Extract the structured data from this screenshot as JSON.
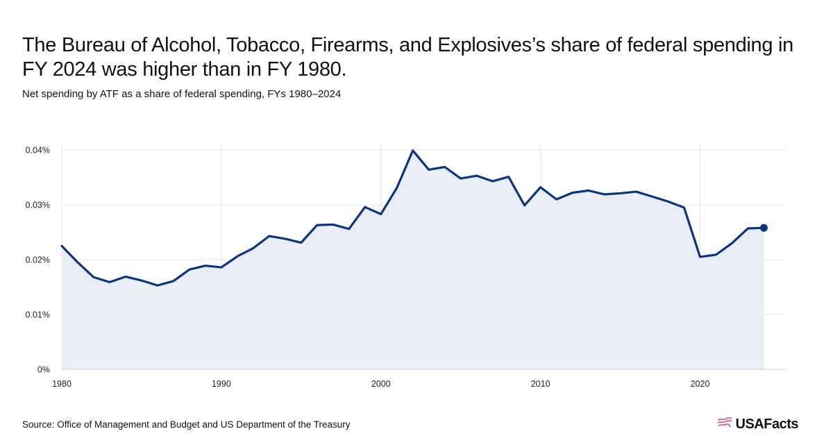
{
  "title": "The Bureau of Alcohol, Tobacco, Firearms, and Explosives’s share of federal spending in FY 2024 was higher than in FY 1980.",
  "subtitle": "Net spending by ATF as a share of federal spending, FYs 1980–2024",
  "source": "Source: Office of Management and Budget and US Department of the Treasury",
  "logo": {
    "text": "USAFacts",
    "icon": "usa-flag-map-icon"
  },
  "colors": {
    "line": "#0a3480",
    "area": "#e9edf6",
    "grid": "#e4e4e4",
    "logo_icon": "#e0457b"
  },
  "chart_data": {
    "type": "line",
    "title": "The Bureau of Alcohol, Tobacco, Firearms, and Explosives’s share of federal spending in FY 2024 was higher than in FY 1980.",
    "subtitle": "Net spending by ATF as a share of federal spending, FYs 1980–2024",
    "xlabel": "",
    "ylabel": "",
    "xlim": [
      1980,
      2024
    ],
    "ylim": [
      0,
      0.04
    ],
    "x_ticks": [
      1980,
      1990,
      2000,
      2010,
      2020
    ],
    "y_ticks": [
      0,
      0.01,
      0.02,
      0.03,
      0.04
    ],
    "y_tick_labels": [
      "0%",
      "0.01%",
      "0.02%",
      "0.03%",
      "0.04%"
    ],
    "grid": true,
    "area_fill": true,
    "end_marker": true,
    "series": [
      {
        "x": [
          1980,
          1981,
          1982,
          1983,
          1984,
          1985,
          1986,
          1987,
          1988,
          1989,
          1990,
          1991,
          1992,
          1993,
          1994,
          1995,
          1996,
          1997,
          1998,
          1999,
          2000,
          2001,
          2002,
          2003,
          2004,
          2005,
          2006,
          2007,
          2008,
          2009,
          2010,
          2011,
          2012,
          2013,
          2014,
          2015,
          2016,
          2017,
          2018,
          2019,
          2020,
          2021,
          2022,
          2023,
          2024
        ],
        "values": [
          0.0225,
          0.0195,
          0.0168,
          0.0159,
          0.0169,
          0.0162,
          0.0153,
          0.0161,
          0.0182,
          0.0189,
          0.0186,
          0.0206,
          0.0221,
          0.0243,
          0.0238,
          0.0231,
          0.0263,
          0.0264,
          0.0256,
          0.0296,
          0.0283,
          0.0331,
          0.0399,
          0.0364,
          0.0369,
          0.0348,
          0.0353,
          0.0343,
          0.0351,
          0.0299,
          0.0332,
          0.031,
          0.0322,
          0.0326,
          0.0319,
          0.0321,
          0.0324,
          0.0315,
          0.0306,
          0.0295,
          0.0205,
          0.0209,
          0.023,
          0.0257,
          0.0258
        ]
      }
    ]
  }
}
